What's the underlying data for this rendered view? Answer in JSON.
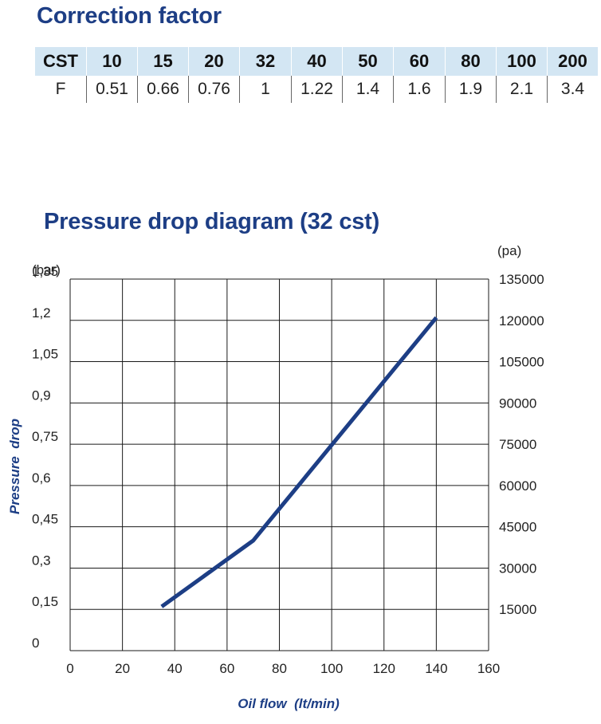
{
  "correction_factor": {
    "title": "Correction factor",
    "header_label": "CST",
    "row_label": "F",
    "columns": [
      "10",
      "15",
      "20",
      "32",
      "40",
      "50",
      "60",
      "80",
      "100",
      "200"
    ],
    "values": [
      "0.51",
      "0.66",
      "0.76",
      "1",
      "1.22",
      "1.4",
      "1.6",
      "1.9",
      "2.1",
      "3.4"
    ]
  },
  "chart_data": {
    "type": "line",
    "title": "Pressure drop diagram (32 cst)",
    "xlabel": "Oil flow  (lt/min)",
    "ylabel": "Pressure  drop",
    "left_unit": "(bar)",
    "right_unit": "(pa)",
    "xlim": [
      0,
      160
    ],
    "ylim": [
      0,
      1.35
    ],
    "x_ticks": [
      "0",
      "20",
      "40",
      "60",
      "80",
      "100",
      "120",
      "140",
      "160"
    ],
    "y_ticks_left": [
      "0",
      "0,15",
      "0,3",
      "0,45",
      "0,6",
      "0,75",
      "0,9",
      "1,05",
      "1,2",
      "1,35"
    ],
    "y_ticks_right": [
      "15000",
      "30000",
      "45000",
      "60000",
      "75000",
      "90000",
      "105000",
      "120000",
      "135000"
    ],
    "grid": true,
    "series": [
      {
        "x": [
          35,
          70,
          140
        ],
        "y": [
          0.16,
          0.4,
          1.21
        ]
      }
    ],
    "line_color": "#1d3e85"
  }
}
